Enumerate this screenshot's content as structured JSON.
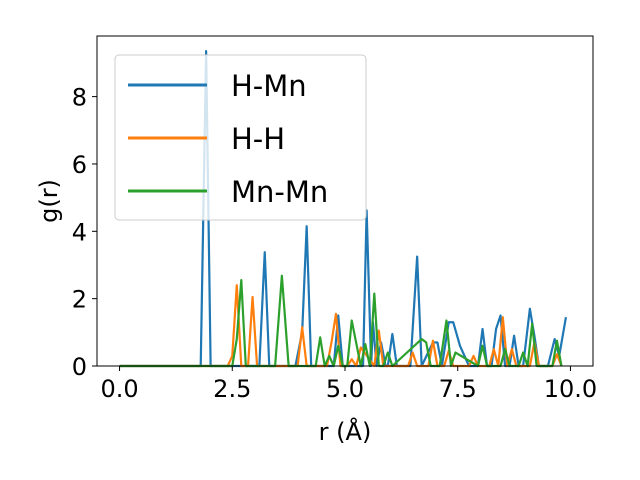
{
  "chart_data": {
    "type": "line",
    "title": "",
    "xlabel": "r (Å)",
    "ylabel": "g(r)",
    "xlim": [
      -0.5,
      10.5
    ],
    "ylim": [
      0,
      9.8
    ],
    "xticks": [
      0.0,
      2.5,
      5.0,
      7.5,
      10.0
    ],
    "xtick_labels": [
      "0.0",
      "2.5",
      "5.0",
      "7.5",
      "10.0"
    ],
    "yticks": [
      0,
      2,
      4,
      6,
      8
    ],
    "ytick_labels": [
      "0",
      "2",
      "4",
      "6",
      "8"
    ],
    "grid": false,
    "legend_position": "top-left",
    "series": [
      {
        "name": "H-Mn",
        "color": "#1f77b4",
        "x": [
          0,
          1.8,
          1.92,
          2.02,
          2.12,
          3.1,
          3.22,
          3.32,
          3.9,
          4.05,
          4.15,
          4.25,
          4.75,
          4.85,
          4.95,
          5.4,
          5.48,
          5.58,
          5.62,
          5.7,
          5.8,
          5.9,
          5.95,
          6.05,
          6.15,
          6.45,
          6.6,
          6.7,
          6.95,
          7.05,
          7.15,
          7.3,
          7.4,
          7.55,
          7.75,
          7.95,
          8.05,
          8.15,
          8.25,
          8.35,
          8.45,
          8.55,
          8.65,
          8.75,
          8.85,
          8.95,
          9.1,
          9.2,
          9.3,
          9.5,
          9.65,
          9.75,
          9.9
        ],
        "y": [
          0,
          0,
          9.35,
          0,
          0,
          0,
          3.38,
          0,
          0,
          1.0,
          4.15,
          0,
          0,
          1.5,
          0,
          0,
          4.62,
          0,
          1.3,
          0,
          0.7,
          0,
          0,
          0.95,
          0,
          0,
          3.25,
          0,
          0.7,
          0.7,
          0,
          1.3,
          1.3,
          0.6,
          0,
          0,
          1.1,
          0,
          0,
          1.1,
          1.5,
          0,
          0,
          0.9,
          0,
          0,
          1.7,
          0.9,
          0,
          0,
          0.8,
          0.3,
          1.45
        ]
      },
      {
        "name": "H-H",
        "color": "#ff7f0e",
        "x": [
          0,
          2.4,
          2.5,
          2.6,
          2.7,
          2.85,
          2.95,
          3.05,
          3.95,
          4.05,
          4.15,
          4.6,
          4.7,
          4.8,
          4.9,
          5.05,
          5.15,
          5.25,
          5.35,
          5.65,
          5.75,
          5.85,
          6.4,
          6.5,
          6.6,
          6.85,
          6.95,
          7.05,
          7.2,
          7.3,
          7.4,
          7.75,
          7.85,
          7.95,
          8.2,
          8.3,
          8.4,
          8.5,
          8.6,
          8.7,
          8.8,
          9.1,
          9.2,
          9.3,
          9.6,
          9.7,
          9.8
        ],
        "y": [
          0,
          0,
          0.3,
          2.4,
          0,
          0,
          2.05,
          0,
          0,
          1.15,
          0,
          0,
          0.7,
          1.55,
          0,
          0,
          0.2,
          0,
          0.55,
          0,
          1.05,
          0,
          0,
          0.4,
          0,
          0,
          0.75,
          0,
          0,
          0.45,
          0,
          0,
          0.3,
          0,
          0,
          0.5,
          0,
          1.45,
          0,
          0.5,
          0,
          0,
          0.7,
          0,
          0,
          0.35,
          0
        ]
      },
      {
        "name": "Mn-Mn",
        "color": "#2ca02c",
        "x": [
          0,
          2.5,
          2.6,
          2.7,
          2.8,
          3.45,
          3.6,
          3.75,
          4.35,
          4.45,
          4.55,
          4.65,
          4.75,
          4.85,
          4.95,
          5.05,
          5.15,
          5.35,
          5.45,
          5.55,
          5.65,
          5.75,
          5.85,
          5.95,
          6.05,
          6.7,
          6.8,
          6.9,
          7.1,
          7.25,
          7.35,
          7.45,
          7.95,
          8.05,
          8.15,
          8.45,
          8.55,
          8.65,
          8.85,
          8.95,
          9.05,
          9.15,
          9.25,
          9.35,
          9.6,
          9.7,
          9.8
        ],
        "y": [
          0,
          0,
          0.8,
          2.55,
          0,
          0,
          2.68,
          0,
          0,
          0.85,
          0,
          0.3,
          0,
          0.6,
          0,
          0,
          1.35,
          0,
          0.65,
          0,
          2.15,
          0,
          0,
          0.4,
          0,
          0.8,
          0.7,
          0,
          0,
          1.35,
          0,
          0.4,
          0,
          0.6,
          0,
          0,
          0.5,
          0,
          0,
          0.4,
          0,
          1.25,
          0,
          0,
          0,
          0.75,
          0
        ]
      }
    ]
  }
}
